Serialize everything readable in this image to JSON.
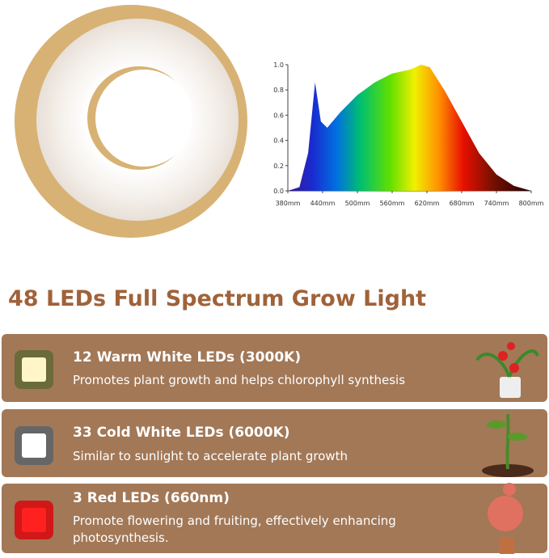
{
  "spectrum": {
    "type": "area",
    "x": [
      380,
      400,
      415,
      427,
      437,
      448,
      470,
      500,
      530,
      560,
      590,
      610,
      625,
      650,
      680,
      710,
      740,
      770,
      800
    ],
    "values": [
      0,
      0.03,
      0.3,
      0.86,
      0.55,
      0.5,
      0.62,
      0.76,
      0.86,
      0.93,
      0.96,
      1.0,
      0.98,
      0.8,
      0.55,
      0.3,
      0.13,
      0.04,
      0
    ],
    "xlim": [
      380,
      800
    ],
    "xticks": [
      {
        "value": 380,
        "label": "380mm"
      },
      {
        "value": 440,
        "label": "440mm"
      },
      {
        "value": 500,
        "label": "500mm"
      },
      {
        "value": 560,
        "label": "560mm"
      },
      {
        "value": 620,
        "label": "620mm"
      },
      {
        "value": 680,
        "label": "680mm"
      },
      {
        "value": 740,
        "label": "740mm"
      },
      {
        "value": 800,
        "label": "800mm"
      }
    ],
    "ylim": [
      0,
      1
    ],
    "yticks": [
      {
        "value": 0,
        "label": "0.0"
      },
      0.2,
      0.4,
      0.6,
      0.8,
      {
        "value": 1,
        "label": "1.0"
      }
    ]
  },
  "header": {
    "title": "48 LEDs Full Spectrum Grow Light"
  },
  "cards": [
    {
      "title": "12 Warm White LEDs (3000K)",
      "description": "Promotes plant growth and helps chlorophyll synthesis"
    },
    {
      "title": "33 Cold White LEDs (6000K)",
      "description": "Similar to sunlight to accelerate plant growth"
    },
    {
      "title": "3 Red LEDs (660nm)",
      "description": "Promote flowering and fruiting, effectively enhancing photosynthesis."
    }
  ]
}
